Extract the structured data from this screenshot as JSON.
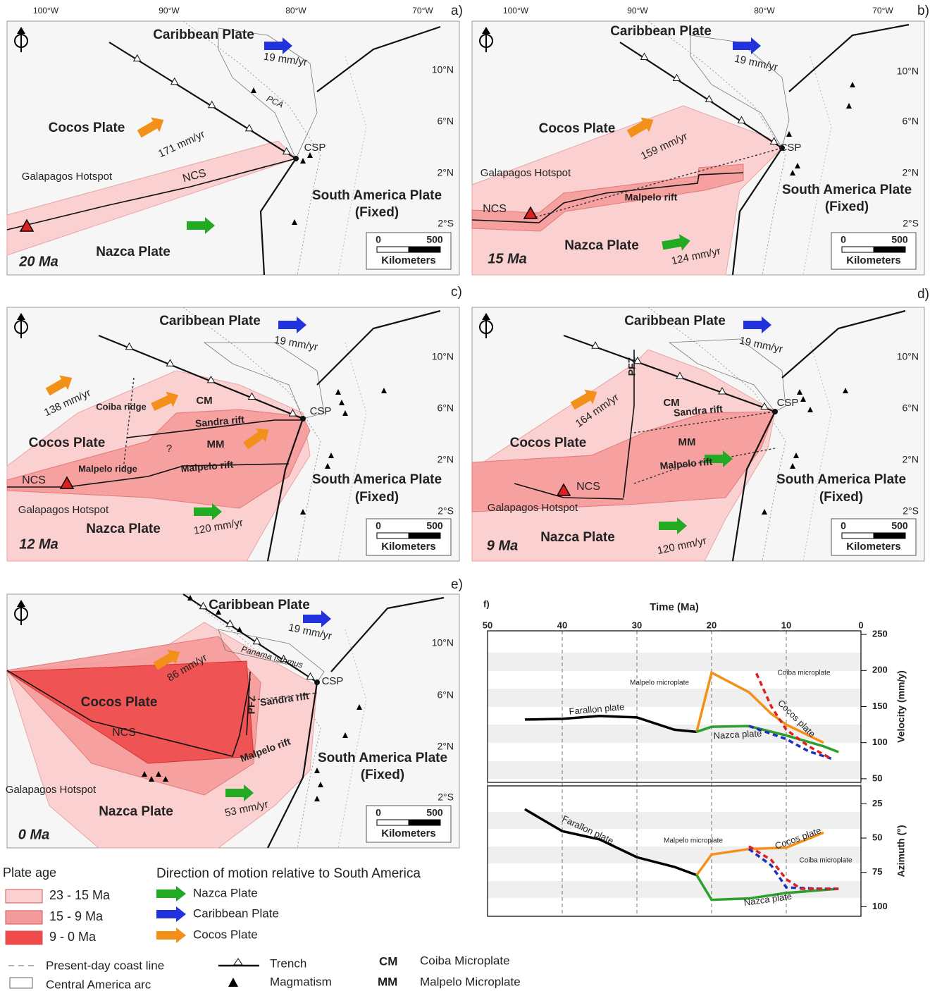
{
  "maps": [
    {
      "panel": "a)",
      "lon_ticks": [
        "100°W",
        "90°W",
        "80°W",
        "70°W"
      ],
      "lat_ticks": [
        "10°N",
        "6°N",
        "2°N",
        "2°S"
      ],
      "scale": [
        "0",
        "500",
        "Kilometers"
      ],
      "labels": [
        "Caribbean Plate",
        "19 mm/yr",
        "PCA",
        "Cocos Plate",
        "171 mm/yr",
        "CSP",
        "NCS",
        "Galapagos Hotspot",
        "South America Plate",
        "(Fixed)",
        "Nazca Plate",
        "20 Ma"
      ]
    },
    {
      "panel": "b)",
      "lon_ticks": [
        "100°W",
        "90°W",
        "80°W",
        "70°W"
      ],
      "lat_ticks": [
        "10°N",
        "6°N",
        "2°N",
        "2°S"
      ],
      "scale": [
        "0",
        "500",
        "Kilometers"
      ],
      "labels": [
        "Caribbean Plate",
        "19 mm/yr",
        "Cocos Plate",
        "159 mm/yr",
        "CSP",
        "Galapagos Hotspot",
        "NCS",
        "Malpelo rift",
        "South America Plate",
        "(Fixed)",
        "Nazca Plate",
        "124 mm/yr",
        "15 Ma"
      ]
    },
    {
      "panel": "c)",
      "lon_ticks": [],
      "lat_ticks": [
        "10°N",
        "6°N",
        "2°N",
        "2°S"
      ],
      "scale": [
        "0",
        "500",
        "Kilometers"
      ],
      "labels": [
        "Caribbean Plate",
        "19 mm/yr",
        "138 mm/yr",
        "Coiba ridge",
        "CM",
        "Sandra rift",
        "CSP",
        "Cocos Plate",
        "MM",
        "?",
        "Malpelo ridge",
        "Malpelo rift",
        "NCS",
        "Galapagos Hotspot",
        "South America Plate",
        "(Fixed)",
        "Nazca Plate",
        "120 mm/yr",
        "12 Ma"
      ]
    },
    {
      "panel": "d)",
      "lon_ticks": [],
      "lat_ticks": [
        "10°N",
        "6°N",
        "2°N",
        "2°S"
      ],
      "scale": [
        "0",
        "500",
        "Kilometers"
      ],
      "labels": [
        "Caribbean Plate",
        "19 mm/yr",
        "PFZ",
        "164 mm/yr",
        "CM",
        "Sandra rift",
        "CSP",
        "Cocos Plate",
        "MM",
        "Malpelo rift",
        "NCS",
        "Galapagos Hotspot",
        "South America Plate",
        "(Fixed)",
        "Nazca Plate",
        "120 mm/yr",
        "9 Ma"
      ]
    },
    {
      "panel": "e)",
      "lon_ticks": [],
      "lat_ticks": [
        "10°N",
        "6°N",
        "2°N",
        "2°S"
      ],
      "scale": [
        "0",
        "500",
        "Kilometers"
      ],
      "labels": [
        "Caribbean Plate",
        "19 mm/yr",
        "Panama Isthmus",
        "86 mm/yr",
        "PFZ",
        "Cocos Plate",
        "Sandra rift",
        "CSP",
        "NCS",
        "Malpelo rift",
        "South America Plate",
        "(Fixed)",
        "Galapagos Hotspot",
        "Nazca Plate",
        "53 mm/yr",
        "0 Ma"
      ]
    }
  ],
  "legend": {
    "plate_age_title": "Plate age",
    "plate_ages": [
      "23 - 15 Ma",
      "15 - 9 Ma",
      "9 - 0 Ma"
    ],
    "motion_title": "Direction of motion relative to South America",
    "motions": [
      "Nazca Plate",
      "Caribbean Plate",
      "Cocos Plate"
    ],
    "symbols": [
      "Present-day coast line",
      "Central America arc",
      "Trench",
      "Magmatism"
    ],
    "abbreviations": [
      {
        "abbr": "CM",
        "name": "Coiba Microplate"
      },
      {
        "abbr": "MM",
        "name": "Malpelo Microplate"
      }
    ]
  },
  "chart_data": [
    {
      "type": "line",
      "panel_label": "f)",
      "x_label": "Time (Ma)",
      "y_label": "Velocity (mm/y)",
      "xlim": [
        50,
        0
      ],
      "xticks": [
        50,
        40,
        30,
        20,
        10,
        0
      ],
      "ylim": [
        45,
        255
      ],
      "yticks": [
        250,
        200,
        150,
        100,
        50
      ],
      "series": [
        {
          "name": "Farallon plate",
          "color": "#000000",
          "x": [
            45,
            40,
            35,
            30,
            25,
            22
          ],
          "values": [
            132,
            133,
            137,
            135,
            118,
            115
          ]
        },
        {
          "name": "Cocos plate",
          "color": "#f39019",
          "x": [
            22,
            20,
            15,
            12,
            10,
            5
          ],
          "values": [
            115,
            197,
            170,
            140,
            125,
            100
          ]
        },
        {
          "name": "Nazca plate",
          "color": "#2ca02c",
          "x": [
            22,
            20,
            15,
            10,
            5,
            3
          ],
          "values": [
            115,
            122,
            123,
            110,
            95,
            87
          ]
        },
        {
          "name": "Malpelo microplate",
          "color": "#1f2fbf",
          "dashed": true,
          "x": [
            15,
            10,
            7,
            4
          ],
          "values": [
            123,
            105,
            88,
            78
          ]
        },
        {
          "name": "Coiba microplate",
          "color": "#e02020",
          "dashed": true,
          "x": [
            14,
            12,
            10,
            7,
            4
          ],
          "values": [
            196,
            150,
            118,
            95,
            78
          ]
        }
      ]
    },
    {
      "type": "line",
      "y_label": "Azimuth (°)",
      "xlim": [
        50,
        0
      ],
      "ylim": [
        107,
        12
      ],
      "yticks": [
        25,
        50,
        75,
        100
      ],
      "series": [
        {
          "name": "Farallon plate",
          "color": "#000000",
          "x": [
            45,
            40,
            35,
            30,
            25,
            22
          ],
          "values": [
            29,
            45,
            51,
            64,
            71,
            77
          ]
        },
        {
          "name": "Cocos plate",
          "color": "#f39019",
          "x": [
            22,
            20,
            15,
            10,
            5
          ],
          "values": [
            77,
            62,
            58,
            57,
            46
          ]
        },
        {
          "name": "Nazca plate",
          "color": "#2ca02c",
          "x": [
            22,
            20,
            15,
            10,
            3
          ],
          "values": [
            77,
            95,
            94,
            90,
            87
          ]
        },
        {
          "name": "Malpelo microplate",
          "color": "#1f2fbf",
          "dashed": true,
          "x": [
            15,
            12,
            10,
            5,
            3
          ],
          "values": [
            58,
            70,
            86,
            87,
            87
          ]
        },
        {
          "name": "Coiba microplate",
          "color": "#e02020",
          "dashed": true,
          "x": [
            15,
            12,
            10,
            8,
            3
          ],
          "values": [
            56,
            66,
            80,
            87,
            87
          ]
        }
      ]
    }
  ]
}
